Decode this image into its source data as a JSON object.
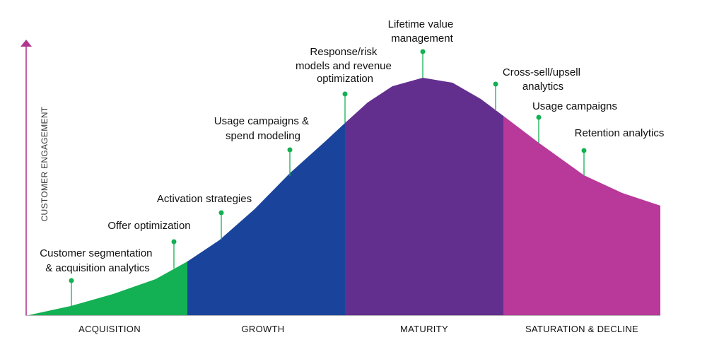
{
  "axis": {
    "y_label": "CUSTOMER ENGAGEMENT",
    "axis_color": "#b0358f"
  },
  "stages": [
    {
      "label": "ACQUISITION",
      "color": "#13b054"
    },
    {
      "label": "GROWTH",
      "color": "#1a449b"
    },
    {
      "label": "MATURITY",
      "color": "#632f8f"
    },
    {
      "label": "SATURATION & DECLINE",
      "color": "#b8399a"
    }
  ],
  "callouts": [
    {
      "lines": [
        "Customer segmentation",
        "& acquisition analytics"
      ]
    },
    {
      "lines": [
        "Offer optimization"
      ]
    },
    {
      "lines": [
        "Activation strategies"
      ]
    },
    {
      "lines": [
        "Usage campaigns &",
        "spend modeling"
      ]
    },
    {
      "lines": [
        "Response/risk",
        "models and revenue",
        "optimization"
      ]
    },
    {
      "lines": [
        "Lifetime value",
        "management"
      ]
    },
    {
      "lines": [
        "Cross-sell/upsell",
        "analytics"
      ]
    },
    {
      "lines": [
        "Usage campaigns"
      ]
    },
    {
      "lines": [
        "Retention analytics"
      ]
    }
  ],
  "marker_color": "#13b054"
}
